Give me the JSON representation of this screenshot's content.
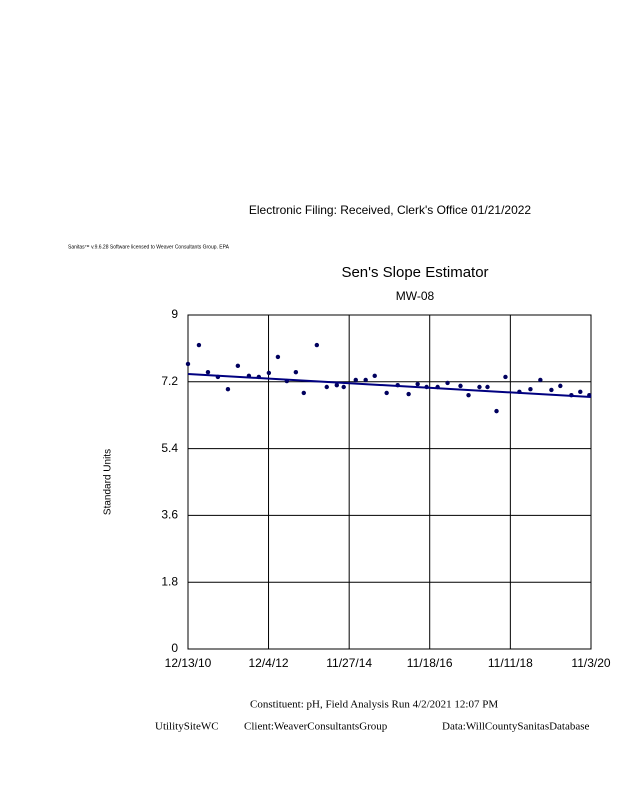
{
  "header": {
    "filing": "Electronic    Filing:    Received,     Clerk's    Office    01/21/2022",
    "license": "Sanitas™  v.9.6.28  Software  licensed  to  Weaver  Consultants  Group.  EPA"
  },
  "chart_data": {
    "type": "scatter",
    "title": "Sen's Slope Estimator",
    "subtitle": "MW-08",
    "y_label": "Standard Units",
    "ylim": [
      0,
      9
    ],
    "yticks": [
      0,
      1.8,
      3.6,
      5.4,
      7.2,
      9
    ],
    "xlim": [
      "12/13/10",
      "11/3/20"
    ],
    "xticks": [
      "12/13/10",
      "12/4/12",
      "11/27/14",
      "11/18/16",
      "11/11/18",
      "11/3/20"
    ],
    "grid": true,
    "series": [
      {
        "color": "#00005e",
        "x": [
          "12/13/10",
          "3/21/11",
          "6/10/11",
          "9/7/11",
          "12/6/11",
          "3/4/12",
          "6/11/12",
          "9/8/12",
          "12/7/12",
          "2/26/13",
          "5/17/13",
          "8/6/13",
          "10/16/13",
          "2/10/14",
          "5/10/14",
          "8/8/14",
          "10/9/14",
          "1/25/15",
          "4/24/15",
          "7/14/15",
          "10/29/15",
          "2/5/16",
          "5/13/16",
          "8/2/16",
          "10/21/16",
          "1/28/17",
          "4/27/17",
          "8/21/17",
          "11/1/17",
          "2/7/18",
          "4/20/18",
          "7/10/18",
          "9/28/18",
          "1/31/19",
          "5/10/19",
          "8/7/19",
          "11/14/19",
          "2/2/20",
          "5/11/20",
          "7/30/20",
          "10/19/20"
        ],
        "values": [
          7.68,
          8.19,
          7.46,
          7.33,
          7.0,
          7.63,
          7.36,
          7.33,
          7.44,
          7.87,
          7.22,
          7.46,
          6.9,
          8.19,
          7.06,
          7.11,
          7.06,
          7.25,
          7.25,
          7.36,
          6.9,
          7.11,
          6.87,
          7.14,
          7.06,
          7.06,
          7.17,
          7.09,
          6.84,
          7.06,
          7.06,
          6.41,
          7.33,
          6.93,
          7.0,
          7.25,
          6.98,
          7.09,
          6.84,
          6.93,
          6.84
        ]
      }
    ],
    "trend_line": {
      "color": "#000080",
      "x": [
        "12/13/10",
        "11/3/20"
      ],
      "values": [
        7.41,
        6.79
      ]
    }
  },
  "footer": {
    "constituent": "Constituent:       pH,   Field       Analysis     Run    4/2/2021      12:07     PM",
    "site": "UtilitySiteWC",
    "client": "Client:WeaverConsultantsGroup",
    "data": "Data:WillCountySanitasDatabase"
  }
}
